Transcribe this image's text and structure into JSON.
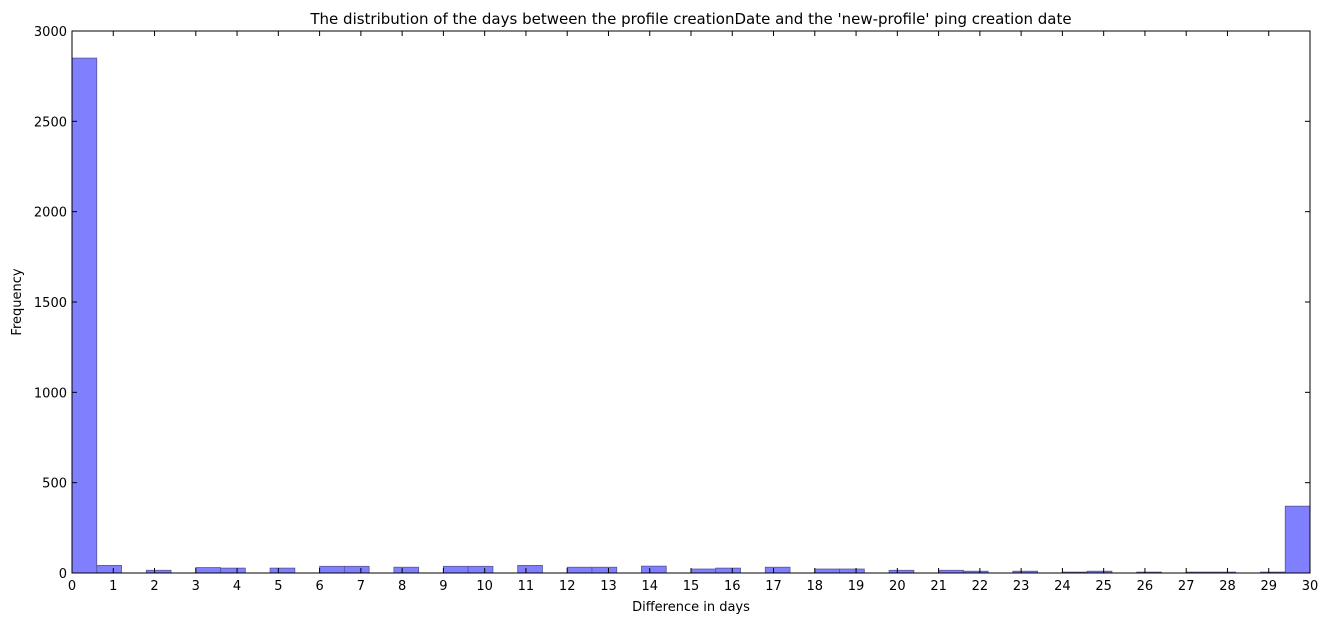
{
  "chart_data": {
    "type": "bar",
    "title": "The distribution of the days between the profile creationDate and the 'new-profile' ping creation date",
    "xlabel": "Difference in days",
    "ylabel": "Frequency",
    "xlim": [
      0,
      30
    ],
    "ylim": [
      0,
      3000
    ],
    "xticks": [
      "0",
      "1",
      "2",
      "3",
      "4",
      "5",
      "6",
      "7",
      "8",
      "9",
      "10",
      "11",
      "12",
      "13",
      "14",
      "15",
      "16",
      "17",
      "18",
      "19",
      "20",
      "21",
      "22",
      "23",
      "24",
      "25",
      "26",
      "27",
      "28",
      "29",
      "30"
    ],
    "yticks": [
      "0",
      "500",
      "1000",
      "1500",
      "2000",
      "2500",
      "3000"
    ],
    "bar_color": "#8080ff",
    "grid": false,
    "bin_width": 0.6,
    "bins": [
      {
        "x": 0.0,
        "value": 2850
      },
      {
        "x": 0.6,
        "value": 42
      },
      {
        "x": 1.8,
        "value": 15
      },
      {
        "x": 3.0,
        "value": 30
      },
      {
        "x": 3.6,
        "value": 27
      },
      {
        "x": 4.8,
        "value": 27
      },
      {
        "x": 6.0,
        "value": 37
      },
      {
        "x": 6.6,
        "value": 37
      },
      {
        "x": 7.8,
        "value": 32
      },
      {
        "x": 9.0,
        "value": 37
      },
      {
        "x": 9.6,
        "value": 37
      },
      {
        "x": 10.8,
        "value": 42
      },
      {
        "x": 12.0,
        "value": 32
      },
      {
        "x": 12.6,
        "value": 32
      },
      {
        "x": 13.8,
        "value": 38
      },
      {
        "x": 15.0,
        "value": 22
      },
      {
        "x": 15.6,
        "value": 27
      },
      {
        "x": 16.8,
        "value": 32
      },
      {
        "x": 18.0,
        "value": 22
      },
      {
        "x": 18.6,
        "value": 22
      },
      {
        "x": 19.8,
        "value": 15
      },
      {
        "x": 21.0,
        "value": 15
      },
      {
        "x": 21.6,
        "value": 10
      },
      {
        "x": 22.8,
        "value": 10
      },
      {
        "x": 24.0,
        "value": 5
      },
      {
        "x": 24.6,
        "value": 10
      },
      {
        "x": 25.8,
        "value": 5
      },
      {
        "x": 27.0,
        "value": 5
      },
      {
        "x": 27.6,
        "value": 5
      },
      {
        "x": 28.8,
        "value": 5
      },
      {
        "x": 29.4,
        "value": 370
      }
    ]
  }
}
